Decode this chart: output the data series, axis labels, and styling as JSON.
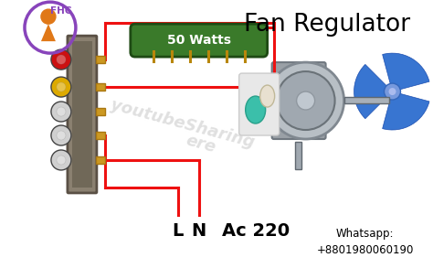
{
  "title": "Fan Regulator",
  "bg_color": "#ffffff",
  "wire_color": "#ee1111",
  "resistor_color": "#3a7a2a",
  "resistor_label": "50 Watts",
  "whatsapp_text": "Whatsapp:\n+8801980060190",
  "logo_text": "FHC",
  "switch_knob_colors": [
    "#cc1111",
    "#ddaa00",
    "#d0d0d0",
    "#d0d0d0",
    "#d0d0d0"
  ],
  "fan_blade_color": "#2266cc",
  "title_fontsize": 19,
  "label_fontsize": 14,
  "board_color": "#7a7060",
  "motor_gray": "#b0b5bb",
  "motor_dark": "#888e94"
}
